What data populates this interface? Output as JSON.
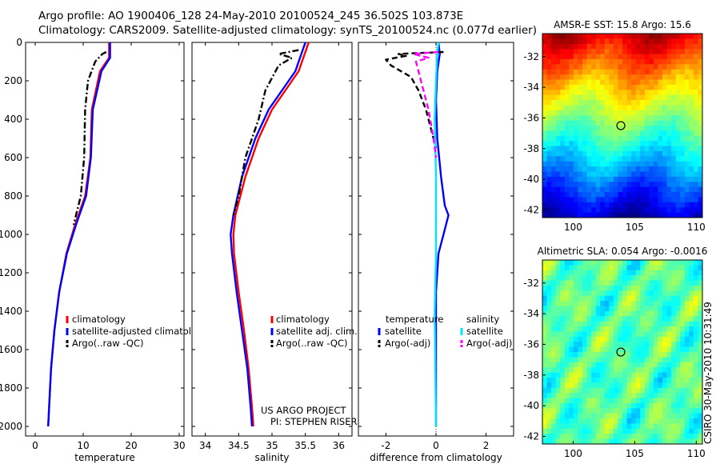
{
  "header": {
    "line1": "Argo profile: AO 1900406_128 24-May-2010 20100524_245 36.502S 103.873E",
    "line2": "Climatology: CARS2009. Satellite-adjusted climatology: synTS_20100524.nc (0.077d earlier)"
  },
  "stamp": "CSIRO 30-May-2010 10:31:49",
  "credit": {
    "line1": "US ARGO PROJECT",
    "line2": "PI: STEPHEN RISER"
  },
  "colors": {
    "climatology": "#ff0000",
    "satellite": "#0000ff",
    "argo": "#000000",
    "salt_sat": "#00e5ff",
    "salt_argo": "#ff00ff"
  },
  "chart_data": [
    {
      "id": "temperature",
      "type": "line",
      "xlabel": "temperature",
      "ylabel": "",
      "xlim": [
        -2,
        31
      ],
      "ylim": [
        2050,
        0
      ],
      "xticks": [
        0,
        10,
        20,
        30
      ],
      "yticks": [
        0,
        200,
        400,
        600,
        800,
        1000,
        1200,
        1400,
        1600,
        1800,
        2000
      ],
      "legend": [
        "climatology",
        "satellite-adjusted climatolo",
        "Argo(..raw -QC)"
      ],
      "series": [
        {
          "name": "climatology",
          "style": "solid",
          "color": "#ff0000",
          "points": [
            [
              15.4,
              0
            ],
            [
              15.4,
              80
            ],
            [
              13.5,
              150
            ],
            [
              11.8,
              350
            ],
            [
              11.5,
              600
            ],
            [
              10.4,
              800
            ],
            [
              8.3,
              950
            ],
            [
              6.5,
              1100
            ],
            [
              5.0,
              1300
            ],
            [
              4.0,
              1500
            ],
            [
              3.3,
              1700
            ],
            [
              2.9,
              1900
            ],
            [
              2.7,
              2000
            ]
          ]
        },
        {
          "name": "satellite",
          "style": "solid",
          "color": "#0000ff",
          "points": [
            [
              15.6,
              0
            ],
            [
              15.6,
              80
            ],
            [
              13.8,
              150
            ],
            [
              12.0,
              350
            ],
            [
              11.6,
              600
            ],
            [
              10.6,
              800
            ],
            [
              8.5,
              950
            ],
            [
              6.6,
              1100
            ],
            [
              5.0,
              1300
            ],
            [
              4.0,
              1500
            ],
            [
              3.3,
              1700
            ],
            [
              2.9,
              1900
            ],
            [
              2.7,
              2000
            ]
          ]
        },
        {
          "name": "argo",
          "style": "dashdot",
          "color": "#000000",
          "points": [
            [
              14.8,
              50
            ],
            [
              14.0,
              60
            ],
            [
              12.5,
              100
            ],
            [
              11.0,
              200
            ],
            [
              10.4,
              350
            ],
            [
              10.2,
              600
            ],
            [
              9.5,
              800
            ],
            [
              8.0,
              950
            ]
          ]
        }
      ]
    },
    {
      "id": "salinity",
      "type": "line",
      "xlabel": "salinity",
      "ylabel": "",
      "xlim": [
        33.8,
        36.2
      ],
      "ylim": [
        2050,
        0
      ],
      "xticks": [
        34,
        34.5,
        35,
        35.5,
        36
      ],
      "xticklabels": [
        "34",
        "34.5",
        "35",
        "35.5",
        "36"
      ],
      "legend": [
        "climatology",
        "satellite adj. clim.",
        "Argo(..raw -QC)"
      ],
      "series": [
        {
          "name": "climatology",
          "style": "solid",
          "color": "#ff0000",
          "points": [
            [
              35.55,
              0
            ],
            [
              35.5,
              50
            ],
            [
              35.4,
              150
            ],
            [
              35.2,
              250
            ],
            [
              35.0,
              350
            ],
            [
              34.8,
              500
            ],
            [
              34.6,
              700
            ],
            [
              34.45,
              900
            ],
            [
              34.42,
              1000
            ],
            [
              34.43,
              1100
            ],
            [
              34.5,
              1300
            ],
            [
              34.58,
              1500
            ],
            [
              34.65,
              1700
            ],
            [
              34.7,
              1900
            ],
            [
              34.72,
              2000
            ]
          ]
        },
        {
          "name": "satellite",
          "style": "solid",
          "color": "#0000ff",
          "points": [
            [
              35.5,
              0
            ],
            [
              35.45,
              50
            ],
            [
              35.35,
              150
            ],
            [
              35.15,
              250
            ],
            [
              34.95,
              350
            ],
            [
              34.75,
              500
            ],
            [
              34.55,
              700
            ],
            [
              34.42,
              900
            ],
            [
              34.38,
              1000
            ],
            [
              34.4,
              1100
            ],
            [
              34.47,
              1300
            ],
            [
              34.55,
              1500
            ],
            [
              34.63,
              1700
            ],
            [
              34.68,
              1900
            ],
            [
              34.7,
              2000
            ]
          ]
        },
        {
          "name": "argo",
          "style": "dashdot",
          "color": "#000000",
          "points": [
            [
              35.4,
              40
            ],
            [
              35.1,
              60
            ],
            [
              35.3,
              80
            ],
            [
              35.1,
              120
            ],
            [
              34.9,
              250
            ],
            [
              34.8,
              400
            ],
            [
              34.6,
              600
            ],
            [
              34.5,
              800
            ],
            [
              34.42,
              900
            ]
          ]
        }
      ]
    },
    {
      "id": "difference",
      "type": "line",
      "xlabel": "difference from climatology",
      "ylabel": "",
      "xlim": [
        -3.1,
        3.1
      ],
      "ylim": [
        2050,
        0
      ],
      "xticks": [
        -2,
        0,
        2
      ],
      "legend_header": {
        "temperature": "temperature",
        "salinity": "salinity"
      },
      "legend_temp": [
        "satellite",
        "Argo(-adj)"
      ],
      "legend_salt": [
        "satellite",
        "Argo(-adj)"
      ],
      "series": [
        {
          "name": "temperature satellite",
          "style": "solid",
          "color": "#0000ff",
          "points": [
            [
              0.1,
              0
            ],
            [
              0.15,
              60
            ],
            [
              0.05,
              150
            ],
            [
              0,
              300
            ],
            [
              0.05,
              500
            ],
            [
              0.2,
              700
            ],
            [
              0.35,
              850
            ],
            [
              0.5,
              900
            ],
            [
              0.3,
              1000
            ],
            [
              0.1,
              1100
            ],
            [
              0,
              1300
            ],
            [
              0,
              2000
            ]
          ]
        },
        {
          "name": "temperature argo",
          "style": "dashed",
          "color": "#000000",
          "points": [
            [
              0.3,
              50
            ],
            [
              -1.5,
              60
            ],
            [
              -1.2,
              70
            ],
            [
              -2.0,
              90
            ],
            [
              -1.8,
              120
            ],
            [
              -1.0,
              180
            ],
            [
              -0.7,
              250
            ],
            [
              -0.4,
              350
            ],
            [
              -0.2,
              450
            ],
            [
              0,
              550
            ]
          ]
        },
        {
          "name": "salinity satellite",
          "style": "solid",
          "color": "#00e5ff",
          "points": [
            [
              0.1,
              0
            ],
            [
              0.05,
              60
            ],
            [
              0,
              200
            ],
            [
              -0.05,
              400
            ],
            [
              0,
              700
            ],
            [
              0,
              1100
            ],
            [
              -0.05,
              1400
            ],
            [
              0,
              2000
            ]
          ]
        },
        {
          "name": "salinity argo",
          "style": "dashed",
          "color": "#ff00ff",
          "points": [
            [
              0.1,
              50
            ],
            [
              -0.9,
              60
            ],
            [
              -0.3,
              80
            ],
            [
              -0.8,
              100
            ],
            [
              -0.6,
              200
            ],
            [
              -0.3,
              350
            ],
            [
              -0.1,
              500
            ],
            [
              0,
              600
            ]
          ]
        }
      ]
    },
    {
      "id": "sst_map",
      "type": "heatmap",
      "title": "AMSR-E SST: 15.8  Argo: 15.6",
      "xlim": [
        97.5,
        110.5
      ],
      "ylim": [
        -42.5,
        -30.5
      ],
      "xticks": [
        100,
        105,
        110
      ],
      "yticks": [
        -32,
        -34,
        -36,
        -38,
        -40,
        -42
      ],
      "marker": [
        103.873,
        -36.502
      ],
      "palette": [
        [
          0,
          0,
          143
        ],
        [
          0,
          0,
          255
        ],
        [
          0,
          127,
          255
        ],
        [
          0,
          255,
          255
        ],
        [
          127,
          255,
          127
        ],
        [
          255,
          255,
          0
        ],
        [
          255,
          127,
          0
        ],
        [
          255,
          0,
          0
        ],
        [
          127,
          0,
          0
        ]
      ]
    },
    {
      "id": "sla_map",
      "type": "heatmap",
      "title": "Altimetric SLA: 0.054  Argo: -0.0016",
      "xlim": [
        97.5,
        110.5
      ],
      "ylim": [
        -42.5,
        -30.5
      ],
      "xticks": [
        100,
        105,
        110
      ],
      "yticks": [
        -32,
        -34,
        -36,
        -38,
        -40,
        -42
      ],
      "marker": [
        103.873,
        -36.502
      ],
      "palette": [
        [
          0,
          0,
          143
        ],
        [
          0,
          0,
          255
        ],
        [
          0,
          127,
          255
        ],
        [
          0,
          255,
          255
        ],
        [
          127,
          255,
          127
        ],
        [
          255,
          255,
          0
        ],
        [
          255,
          127,
          0
        ],
        [
          255,
          0,
          0
        ],
        [
          127,
          0,
          0
        ]
      ]
    }
  ]
}
